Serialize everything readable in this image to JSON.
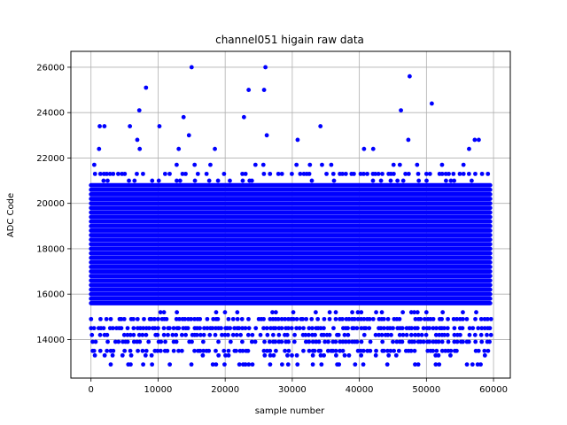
{
  "chart_data": {
    "type": "scatter",
    "title": "channel051 higain raw data",
    "xlabel": "sample number",
    "ylabel": "ADC Code",
    "xlim": [
      -3000,
      62500
    ],
    "ylim": [
      12300,
      26700
    ],
    "xticks": [
      0,
      10000,
      20000,
      30000,
      40000,
      50000,
      60000
    ],
    "yticks": [
      14000,
      16000,
      18000,
      20000,
      22000,
      24000,
      26000
    ],
    "grid": true,
    "marker_color": "#0000ff",
    "x_range_samples": [
      0,
      59500
    ],
    "dense_band": {
      "levels_from": 15600,
      "levels_to": 20800,
      "level_step": 200
    },
    "sparse_levels": [
      {
        "y": 12900,
        "density": 0.3
      },
      {
        "y": 13300,
        "density": 0.3
      },
      {
        "y": 13500,
        "density": 0.55
      },
      {
        "y": 13900,
        "density": 0.6
      },
      {
        "y": 14200,
        "density": 0.65
      },
      {
        "y": 14500,
        "density": 0.85
      },
      {
        "y": 14900,
        "density": 0.75
      },
      {
        "y": 15200,
        "density": 0.2
      },
      {
        "y": 21000,
        "density": 0.15
      },
      {
        "y": 21300,
        "density": 0.5
      },
      {
        "y": 21700,
        "density": 0.1
      },
      {
        "y": 22400,
        "density": 0.04
      }
    ],
    "outliers": [
      {
        "x": 1200,
        "y": 22400
      },
      {
        "x": 1300,
        "y": 23400
      },
      {
        "x": 2000,
        "y": 23400
      },
      {
        "x": 5800,
        "y": 23400
      },
      {
        "x": 6900,
        "y": 22800
      },
      {
        "x": 7200,
        "y": 24100
      },
      {
        "x": 8200,
        "y": 25100
      },
      {
        "x": 10200,
        "y": 23400
      },
      {
        "x": 13800,
        "y": 23800
      },
      {
        "x": 14600,
        "y": 23000
      },
      {
        "x": 15000,
        "y": 26000
      },
      {
        "x": 22800,
        "y": 23800
      },
      {
        "x": 23500,
        "y": 25000
      },
      {
        "x": 25800,
        "y": 25000
      },
      {
        "x": 26000,
        "y": 26000
      },
      {
        "x": 26200,
        "y": 23000
      },
      {
        "x": 30800,
        "y": 22800
      },
      {
        "x": 34200,
        "y": 23400
      },
      {
        "x": 37800,
        "y": 14200
      },
      {
        "x": 46200,
        "y": 24100
      },
      {
        "x": 47300,
        "y": 22800
      },
      {
        "x": 47500,
        "y": 25600
      },
      {
        "x": 50800,
        "y": 24400
      },
      {
        "x": 57200,
        "y": 22800
      },
      {
        "x": 57800,
        "y": 22800
      }
    ]
  }
}
